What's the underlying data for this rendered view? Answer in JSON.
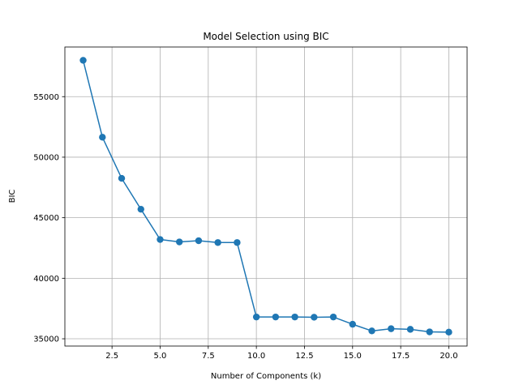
{
  "chart_data": {
    "type": "line",
    "title": "Model Selection using BIC",
    "xlabel": "Number of Components (k)",
    "ylabel": "BIC",
    "grid": true,
    "xlim": [
      0.05,
      20.95
    ],
    "ylim": [
      34400,
      59100
    ],
    "xticks": [
      2.5,
      5.0,
      7.5,
      10.0,
      12.5,
      15.0,
      17.5,
      20.0
    ],
    "xtick_labels": [
      "2.5",
      "5.0",
      "7.5",
      "10.0",
      "12.5",
      "15.0",
      "17.5",
      "20.0"
    ],
    "yticks": [
      35000,
      40000,
      45000,
      50000,
      55000
    ],
    "ytick_labels": [
      "35000",
      "40000",
      "45000",
      "50000",
      "55000"
    ],
    "colors": {
      "series": "#1f77b4",
      "grid": "#b0b0b0",
      "axes": "#000000"
    },
    "series": [
      {
        "x": [
          1,
          2,
          3,
          4,
          5,
          6,
          7,
          8,
          9,
          10,
          11,
          12,
          13,
          14,
          15,
          16,
          17,
          18,
          19,
          20
        ],
        "values": [
          58000,
          51650,
          48250,
          45700,
          43200,
          43000,
          43100,
          42950,
          42950,
          36800,
          36800,
          36800,
          36780,
          36800,
          36200,
          35650,
          35830,
          35780,
          35570,
          35550
        ],
        "marker": "circle"
      }
    ]
  }
}
